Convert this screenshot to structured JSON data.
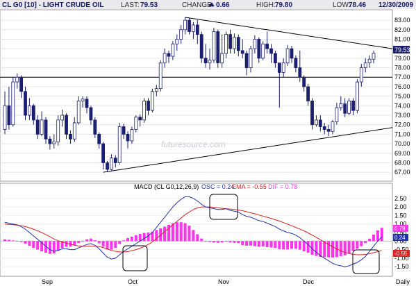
{
  "header": {
    "title": "CL G0 [10] - LIGHT CRUDE OIL",
    "last_label": "LAST:",
    "last_value": "79.53",
    "change_label": "CHANGE:",
    "change_value": "0.66",
    "high_label": "HIGH:",
    "high_value": "79.80",
    "low_label": "LOW:",
    "low_value": "78.46",
    "date": "12/30/2009"
  },
  "watermark": "futuresource.com",
  "price_tag": "79.53",
  "colors": {
    "up_candle": "#ffffff",
    "down_candle": "#1a1f6e",
    "macd_line": "#2233aa",
    "ema_line": "#dd2222",
    "histogram": "#ff33ee",
    "header_bg": "#e9e9ee",
    "ema_text": "#dd2222",
    "dif_text": "#ff33ee",
    "osc_text": "#2233aa"
  },
  "macd_header": {
    "prefix": "MACD (CL G0,12,26,9)",
    "osc": "OSC = 0.24",
    "ema": "EMA = -0.55",
    "dif": "DIF = 0.78"
  },
  "macd_tags": [
    "0.78",
    "0.24",
    "-0.55"
  ],
  "x_labels": [
    "Sep",
    "Oct",
    "Nov",
    "Dec",
    "Daily"
  ],
  "chart_data": [
    {
      "type": "candlestick",
      "title": "CL G0 [10] - LIGHT CRUDE OIL",
      "ylim": [
        66.5,
        83.7
      ],
      "y_ticks": [
        "83.00",
        "82.00",
        "81.00",
        "80.00",
        "79.00",
        "78.00",
        "77.00",
        "76.00",
        "75.00",
        "74.00",
        "73.00",
        "72.00",
        "71.00",
        "70.00",
        "69.00",
        "68.00",
        "67.00"
      ],
      "x_labels": [
        "Sep",
        "Oct",
        "Nov",
        "Dec"
      ],
      "candles": [
        [
          71.5,
          74.0,
          71.0,
          75.5
        ],
        [
          74.0,
          72.0,
          71.5,
          76.0
        ],
        [
          72.0,
          76.5,
          71.8,
          77.0
        ],
        [
          76.5,
          77.0,
          75.8,
          77.4
        ],
        [
          77.0,
          75.5,
          74.8,
          77.2
        ],
        [
          75.5,
          73.0,
          72.5,
          76.0
        ],
        [
          73.0,
          74.0,
          72.5,
          74.8
        ],
        [
          74.0,
          72.5,
          72.0,
          74.2
        ],
        [
          72.5,
          71.0,
          70.5,
          73.0
        ],
        [
          71.0,
          72.5,
          70.8,
          73.4
        ],
        [
          72.5,
          70.5,
          70.0,
          72.8
        ],
        [
          70.5,
          70.0,
          69.4,
          70.8
        ],
        [
          70.0,
          70.2,
          69.5,
          71.0
        ],
        [
          70.2,
          72.5,
          69.8,
          73.0
        ],
        [
          72.5,
          73.0,
          71.8,
          73.6
        ],
        [
          73.0,
          71.0,
          70.5,
          73.2
        ],
        [
          71.0,
          70.5,
          70.0,
          71.4
        ],
        [
          70.5,
          72.2,
          70.2,
          72.8
        ],
        [
          72.2,
          74.5,
          72.0,
          75.0
        ],
        [
          74.5,
          74.7,
          73.8,
          75.0
        ],
        [
          74.7,
          73.8,
          73.2,
          75.0
        ],
        [
          73.8,
          72.5,
          72.0,
          74.0
        ],
        [
          72.5,
          71.0,
          70.6,
          72.8
        ],
        [
          71.0,
          70.0,
          69.5,
          71.2
        ],
        [
          70.0,
          68.0,
          67.3,
          70.2
        ],
        [
          68.0,
          67.3,
          67.0,
          68.2
        ],
        [
          67.3,
          68.5,
          67.1,
          68.9
        ],
        [
          68.5,
          68.0,
          67.5,
          68.8
        ],
        [
          68.0,
          71.8,
          67.8,
          72.2
        ],
        [
          71.8,
          71.0,
          70.5,
          72.1
        ],
        [
          71.0,
          70.3,
          69.5,
          71.3
        ],
        [
          70.3,
          71.5,
          70.0,
          71.8
        ],
        [
          71.5,
          72.8,
          71.2,
          73.0
        ],
        [
          72.8,
          72.5,
          71.8,
          73.1
        ],
        [
          72.5,
          74.5,
          72.2,
          74.8
        ],
        [
          74.5,
          73.5,
          73.0,
          74.8
        ],
        [
          73.5,
          75.5,
          73.3,
          75.8
        ],
        [
          75.5,
          75.8,
          75.0,
          76.2
        ],
        [
          75.8,
          78.5,
          75.5,
          78.8
        ],
        [
          78.5,
          79.5,
          78.0,
          80.0
        ],
        [
          79.5,
          79.2,
          78.5,
          79.8
        ],
        [
          79.2,
          80.5,
          78.8,
          80.8
        ],
        [
          80.5,
          81.0,
          79.8,
          81.5
        ],
        [
          81.0,
          82.0,
          80.5,
          82.5
        ],
        [
          82.0,
          83.0,
          81.5,
          83.3
        ],
        [
          83.0,
          81.8,
          81.5,
          83.2
        ],
        [
          81.8,
          82.5,
          81.0,
          82.8
        ],
        [
          82.5,
          81.5,
          80.5,
          83.0
        ],
        [
          81.5,
          79.0,
          78.5,
          81.8
        ],
        [
          79.0,
          78.5,
          78.0,
          80.5
        ],
        [
          78.5,
          78.8,
          77.8,
          80.0
        ],
        [
          78.8,
          81.8,
          78.5,
          82.2
        ],
        [
          81.8,
          78.5,
          78.0,
          82.0
        ],
        [
          78.5,
          79.5,
          78.0,
          81.5
        ],
        [
          79.5,
          81.5,
          79.0,
          81.8
        ],
        [
          81.5,
          80.0,
          79.5,
          82.0
        ],
        [
          80.0,
          81.2,
          79.5,
          81.6
        ],
        [
          81.2,
          79.8,
          79.2,
          81.5
        ],
        [
          79.8,
          79.5,
          79.0,
          81.0
        ],
        [
          79.5,
          78.0,
          77.2,
          79.8
        ],
        [
          78.0,
          80.0,
          77.5,
          80.3
        ],
        [
          80.0,
          81.0,
          79.5,
          81.4
        ],
        [
          81.0,
          79.0,
          78.5,
          81.2
        ],
        [
          79.0,
          80.5,
          78.8,
          80.8
        ],
        [
          80.5,
          80.0,
          79.5,
          81.8
        ],
        [
          80.0,
          79.5,
          78.5,
          80.5
        ],
        [
          79.5,
          78.5,
          78.0,
          79.8
        ],
        [
          78.5,
          77.5,
          73.8,
          78.5
        ],
        [
          77.5,
          78.5,
          77.0,
          79.0
        ],
        [
          78.5,
          80.0,
          78.2,
          80.4
        ],
        [
          80.0,
          79.0,
          78.5,
          80.3
        ],
        [
          79.0,
          78.0,
          77.5,
          79.3
        ],
        [
          78.0,
          77.0,
          76.5,
          79.8
        ],
        [
          77.0,
          76.0,
          75.5,
          77.2
        ],
        [
          76.0,
          74.5,
          74.0,
          76.3
        ],
        [
          74.5,
          72.0,
          71.5,
          74.8
        ],
        [
          72.0,
          72.5,
          71.8,
          73.0
        ],
        [
          72.5,
          71.8,
          71.3,
          73.0
        ],
        [
          71.8,
          71.5,
          71.0,
          72.2
        ],
        [
          71.5,
          71.3,
          70.8,
          72.0
        ],
        [
          71.3,
          72.3,
          71.0,
          72.5
        ],
        [
          72.3,
          73.8,
          72.0,
          74.3
        ],
        [
          73.8,
          74.2,
          73.5,
          75.0
        ],
        [
          74.2,
          73.2,
          72.8,
          74.8
        ],
        [
          73.2,
          74.5,
          73.0,
          74.8
        ],
        [
          74.5,
          73.5,
          73.0,
          74.8
        ],
        [
          73.5,
          76.5,
          73.2,
          76.8
        ],
        [
          76.5,
          78.0,
          76.0,
          78.4
        ],
        [
          78.0,
          78.5,
          77.5,
          79.0
        ],
        [
          78.5,
          78.9,
          78.0,
          79.3
        ],
        [
          78.9,
          79.53,
          78.46,
          79.8
        ]
      ],
      "trendlines": [
        {
          "from": [
            24,
            67.0
          ],
          "to": [
            95,
            71.7
          ]
        },
        {
          "from": [
            44,
            83.3
          ],
          "to": [
            95,
            80.0
          ]
        },
        {
          "from": [
            -2,
            77.0
          ],
          "to": [
            95,
            77.0
          ]
        }
      ]
    },
    {
      "type": "macd",
      "title": "MACD (CL G0,12,26,9)",
      "ylim": [
        -1.9,
        2.9
      ],
      "y_ticks": [
        "2.50",
        "2.00",
        "1.50",
        "1.00",
        "0.50",
        "0.00",
        "-0.50",
        "-1.00",
        "-1.50"
      ],
      "x_labels": [
        "Sep",
        "Oct",
        "Nov",
        "Dec",
        "Daily"
      ],
      "series": [
        {
          "name": "OSC",
          "values": [
            1.1,
            1.05,
            1.0,
            0.95,
            0.85,
            0.7,
            0.5,
            0.3,
            0.1,
            -0.1,
            -0.3,
            -0.5,
            -0.6,
            -0.55,
            -0.45,
            -0.45,
            -0.5,
            -0.5,
            -0.4,
            -0.3,
            -0.2,
            -0.15,
            -0.25,
            -0.45,
            -0.7,
            -0.95,
            -1.05,
            -1.0,
            -0.8,
            -0.6,
            -0.45,
            -0.3,
            -0.15,
            0.0,
            0.15,
            0.3,
            0.5,
            0.8,
            1.1,
            1.4,
            1.7,
            2.0,
            2.25,
            2.45,
            2.6,
            2.6,
            2.5,
            2.35,
            2.15,
            2.0,
            1.95,
            1.9,
            1.85,
            1.85,
            1.9,
            1.8,
            1.75,
            1.7,
            1.55,
            1.45,
            1.4,
            1.3,
            1.2,
            1.15,
            1.05,
            0.95,
            0.85,
            0.7,
            0.6,
            0.5,
            0.45,
            0.35,
            0.2,
            0.0,
            -0.2,
            -0.45,
            -0.65,
            -0.85,
            -1.0,
            -1.15,
            -1.3,
            -1.4,
            -1.45,
            -1.5,
            -1.45,
            -1.35,
            -1.25,
            -1.1,
            -0.9,
            -0.6,
            -0.3,
            0.0,
            0.24
          ]
        },
        {
          "name": "EMA",
          "values": [
            1.0,
            0.98,
            0.96,
            0.94,
            0.9,
            0.85,
            0.78,
            0.7,
            0.6,
            0.5,
            0.38,
            0.25,
            0.12,
            0.02,
            -0.05,
            -0.12,
            -0.18,
            -0.24,
            -0.28,
            -0.3,
            -0.3,
            -0.3,
            -0.3,
            -0.32,
            -0.38,
            -0.46,
            -0.55,
            -0.6,
            -0.64,
            -0.64,
            -0.62,
            -0.56,
            -0.5,
            -0.42,
            -0.32,
            -0.2,
            -0.05,
            0.15,
            0.35,
            0.55,
            0.75,
            0.95,
            1.15,
            1.35,
            1.55,
            1.7,
            1.85,
            1.95,
            2.0,
            2.0,
            2.0,
            1.98,
            1.95,
            1.92,
            1.9,
            1.88,
            1.85,
            1.82,
            1.78,
            1.72,
            1.66,
            1.6,
            1.53,
            1.46,
            1.4,
            1.33,
            1.25,
            1.17,
            1.08,
            0.99,
            0.9,
            0.8,
            0.7,
            0.6,
            0.48,
            0.35,
            0.22,
            0.08,
            -0.06,
            -0.2,
            -0.34,
            -0.46,
            -0.57,
            -0.66,
            -0.73,
            -0.78,
            -0.8,
            -0.8,
            -0.78,
            -0.74,
            -0.68,
            -0.62,
            -0.55
          ]
        },
        {
          "name": "DIF",
          "values": [
            0.1,
            0.07,
            0.04,
            0.01,
            -0.05,
            -0.15,
            -0.28,
            -0.4,
            -0.5,
            -0.6,
            -0.68,
            -0.75,
            -0.72,
            -0.57,
            -0.4,
            -0.33,
            -0.32,
            -0.26,
            -0.12,
            0.0,
            0.1,
            0.15,
            0.05,
            -0.13,
            -0.32,
            -0.49,
            -0.5,
            -0.4,
            -0.16,
            0.04,
            0.17,
            0.26,
            0.35,
            0.42,
            0.47,
            0.5,
            0.55,
            0.65,
            0.75,
            0.85,
            0.95,
            1.05,
            1.1,
            1.1,
            1.05,
            0.9,
            0.65,
            0.4,
            0.15,
            0.0,
            -0.05,
            -0.08,
            -0.1,
            -0.07,
            0.0,
            -0.08,
            -0.1,
            -0.12,
            -0.23,
            -0.27,
            -0.26,
            -0.3,
            -0.33,
            -0.31,
            -0.35,
            -0.38,
            -0.4,
            -0.47,
            -0.48,
            -0.49,
            -0.45,
            -0.45,
            -0.5,
            -0.6,
            -0.68,
            -0.8,
            -0.87,
            -0.93,
            -0.94,
            -0.95,
            -0.96,
            -0.94,
            -0.88,
            -0.84,
            -0.72,
            -0.57,
            -0.45,
            -0.3,
            -0.12,
            0.14,
            0.38,
            0.62,
            0.78
          ]
        }
      ]
    }
  ]
}
